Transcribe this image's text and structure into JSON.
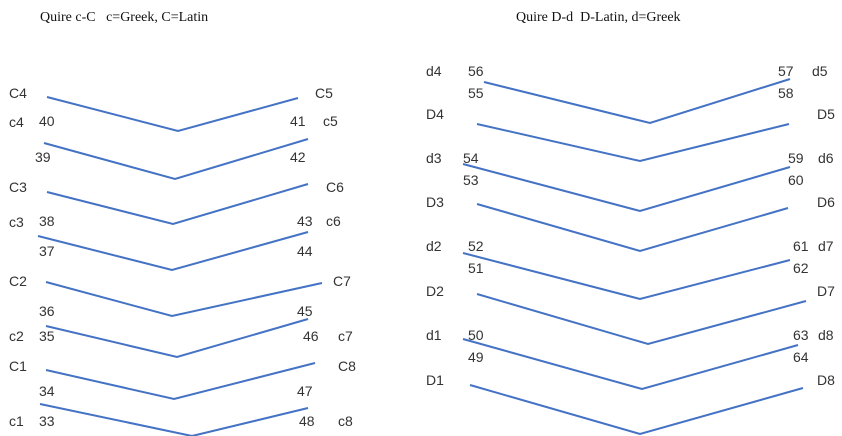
{
  "titles": {
    "left": "Quire c-C   c=Greek, C=Latin",
    "right": "Quire D-d  D-Latin, d=Greek"
  },
  "colors": {
    "line": "#4472C4",
    "text": "#333333"
  },
  "left_quire": {
    "labels": [
      "C4",
      "C5",
      "c4",
      "40",
      "41",
      "c5",
      "39",
      "42",
      "C3",
      "C6",
      "c3",
      "38",
      "43",
      "c6",
      "37",
      "44",
      "C2",
      "C7",
      "36",
      "45",
      "c2",
      "35",
      "46",
      "c7",
      "C1",
      "C8",
      "34",
      "47",
      "c1",
      "33",
      "48",
      "c8"
    ]
  },
  "right_quire": {
    "labels": [
      "d4",
      "56",
      "57",
      "d5",
      "55",
      "58",
      "D4",
      "D5",
      "d3",
      "54",
      "59",
      "d6",
      "53",
      "60",
      "D3",
      "D6",
      "d2",
      "52",
      "61",
      "d7",
      "51",
      "62",
      "D2",
      "D7",
      "d1",
      "50",
      "63",
      "d8",
      "49",
      "64",
      "D1",
      "D8"
    ]
  }
}
